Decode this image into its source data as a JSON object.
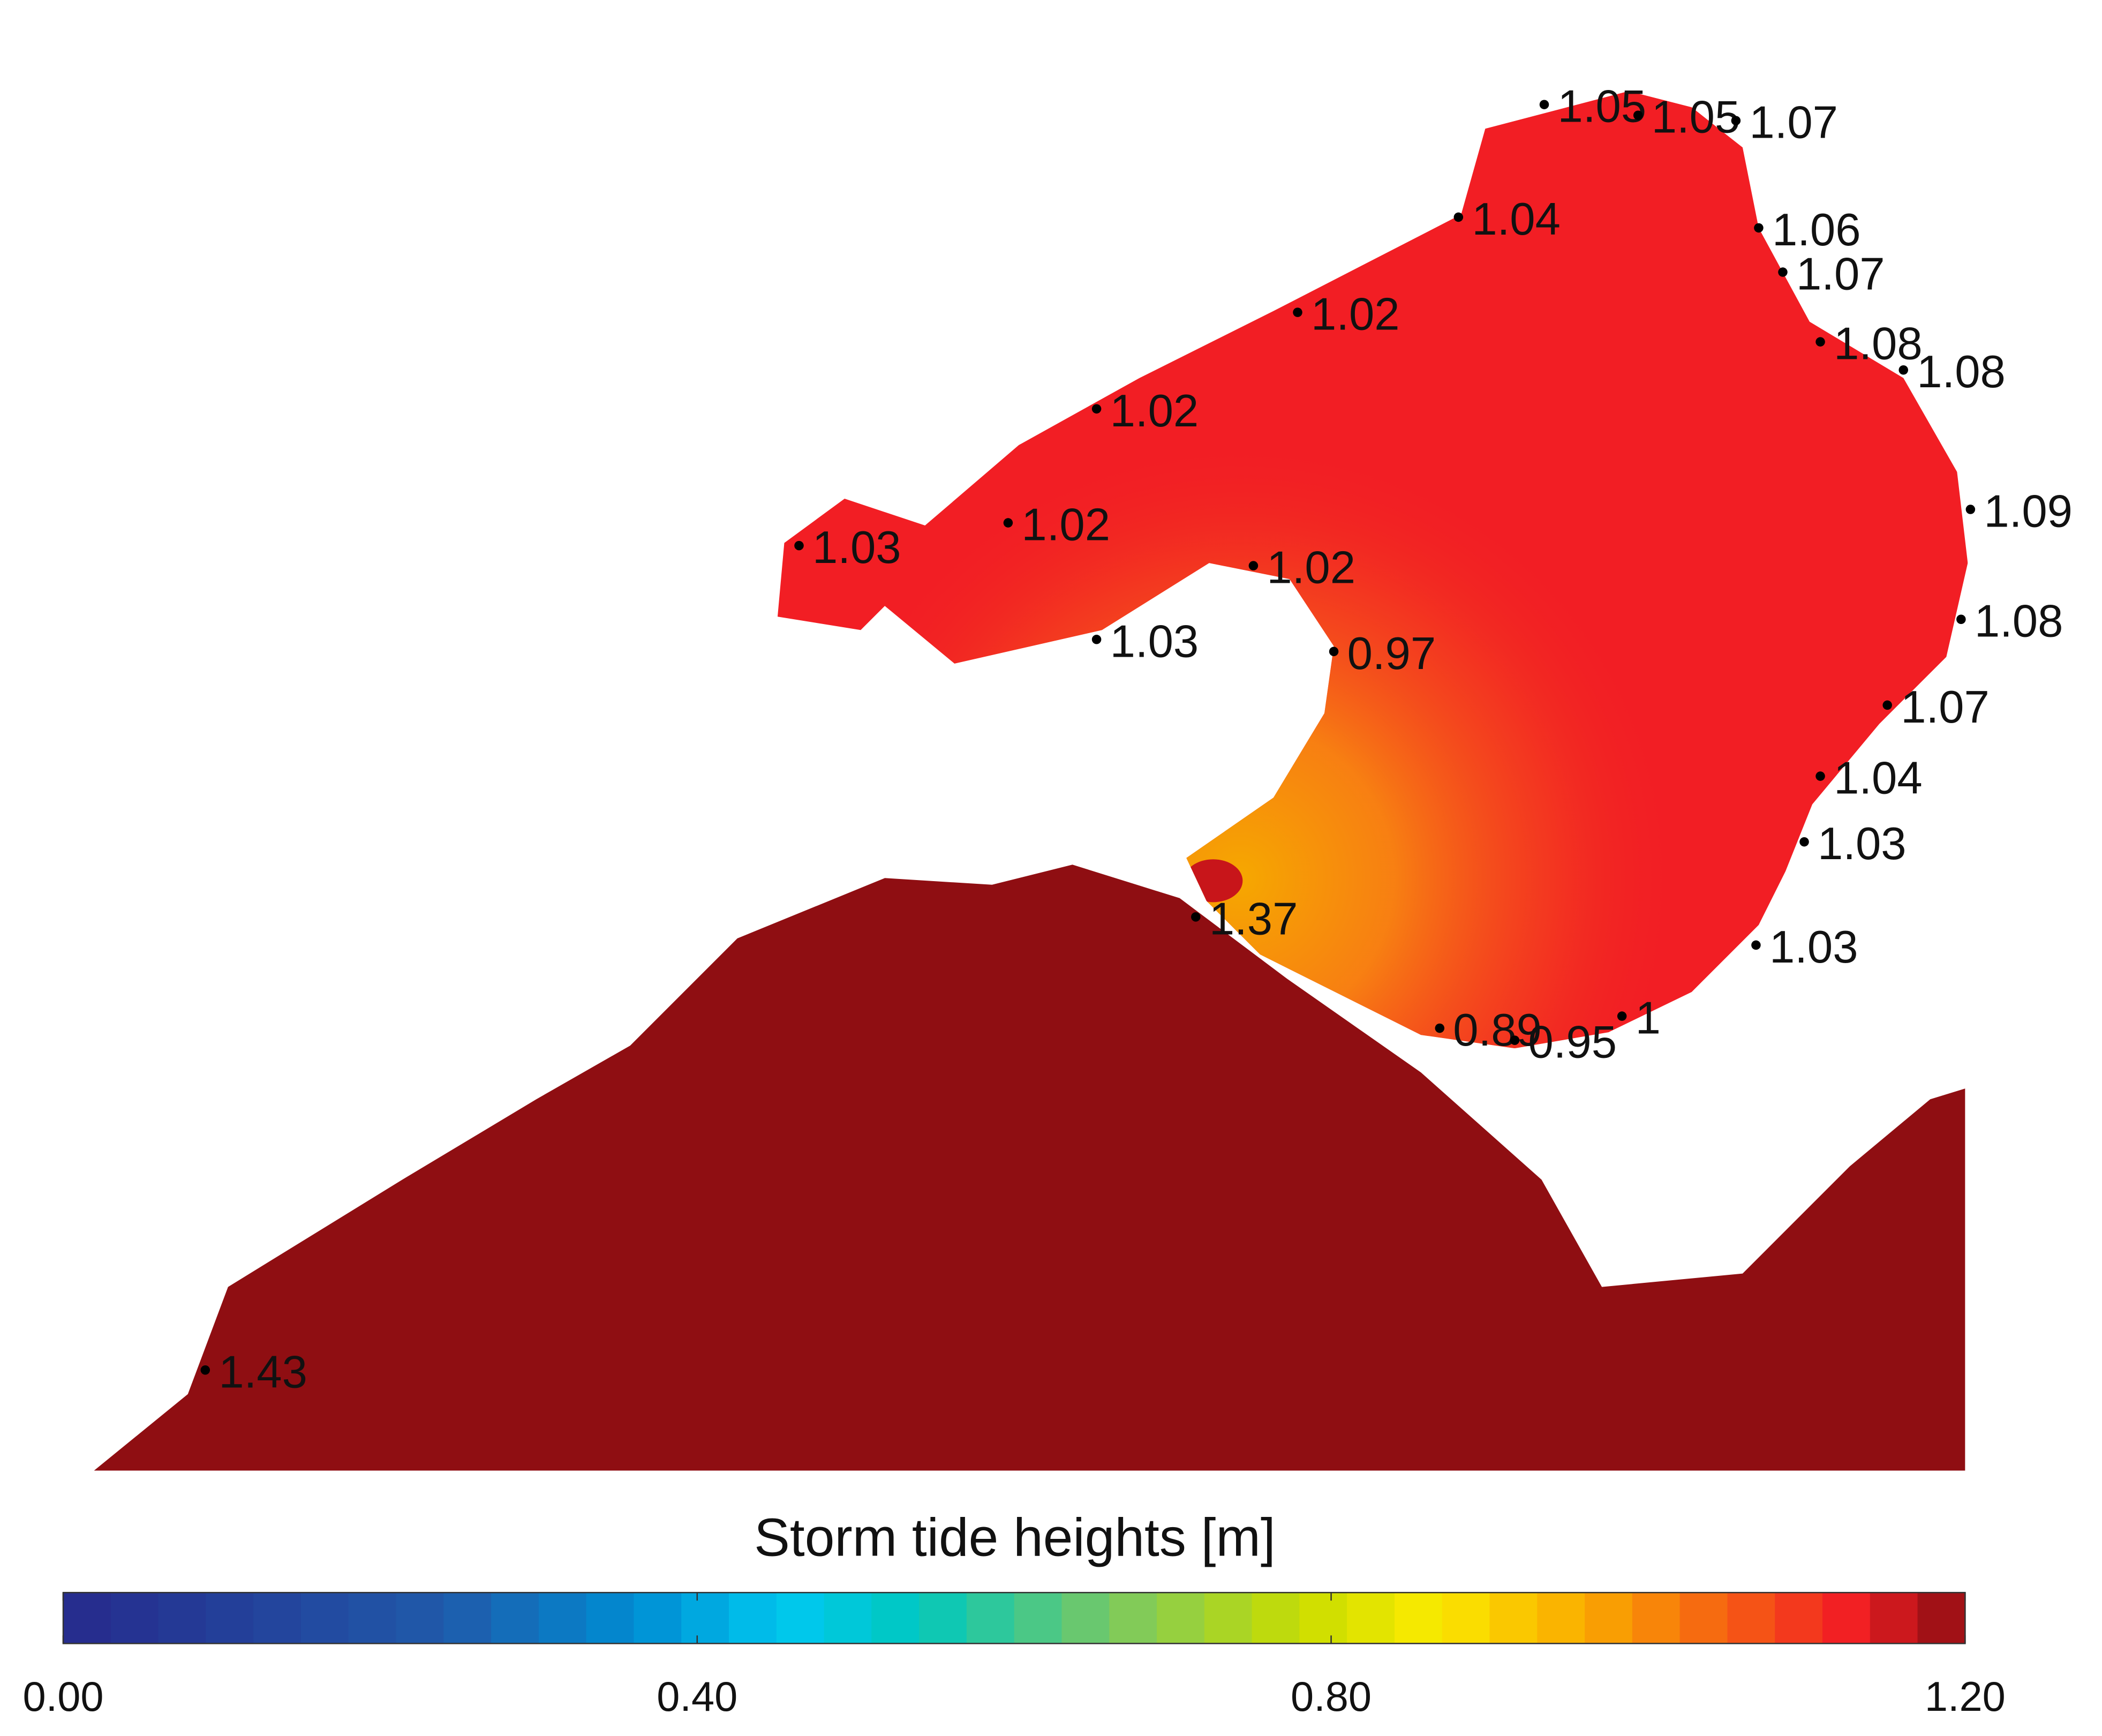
{
  "map": {
    "stations": [
      1.05,
      1.05,
      1.07,
      1.04,
      1.06,
      1.07,
      1.02,
      1.08,
      1.08,
      1.02,
      1.09,
      1.02,
      1.03,
      1.02,
      1.03,
      1.08,
      0.97,
      1.07,
      1.04,
      1.03,
      1.37,
      1.03,
      1,
      0.89,
      0.95,
      1.43
    ],
    "colorbar": {
      "title": "Storm tide heights  [m]",
      "lim": [
        0,
        1.2
      ],
      "ticks": [
        {
          "value": 0,
          "label": "0.00"
        },
        {
          "value": 0.4,
          "label": "0.40"
        },
        {
          "value": 0.8,
          "label": "0.80"
        },
        {
          "value": 1.2,
          "label": "1.20"
        }
      ]
    }
  }
}
